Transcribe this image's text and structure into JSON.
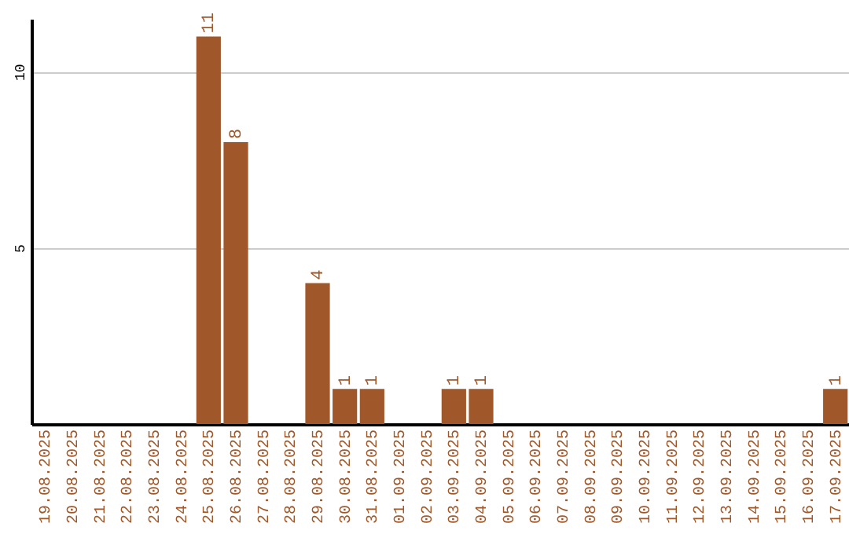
{
  "chart_data": {
    "type": "bar",
    "categories": [
      "19.08.2025",
      "20.08.2025",
      "21.08.2025",
      "22.08.2025",
      "23.08.2025",
      "24.08.2025",
      "25.08.2025",
      "26.08.2025",
      "27.08.2025",
      "28.08.2025",
      "29.08.2025",
      "30.08.2025",
      "31.08.2025",
      "01.09.2025",
      "02.09.2025",
      "03.09.2025",
      "04.09.2025",
      "05.09.2025",
      "06.09.2025",
      "07.09.2025",
      "08.09.2025",
      "09.09.2025",
      "10.09.2025",
      "11.09.2025",
      "12.09.2025",
      "13.09.2025",
      "14.09.2025",
      "15.09.2025",
      "16.09.2025",
      "17.09.2025"
    ],
    "values": [
      0,
      0,
      0,
      0,
      0,
      0,
      11,
      8,
      0,
      0,
      4,
      1,
      1,
      0,
      0,
      1,
      1,
      0,
      0,
      0,
      0,
      0,
      0,
      0,
      0,
      0,
      0,
      0,
      0,
      1
    ],
    "value_labels": [
      null,
      null,
      null,
      null,
      null,
      null,
      "11",
      "8",
      null,
      null,
      "4",
      "1",
      "1",
      null,
      null,
      "1",
      "1",
      null,
      null,
      null,
      null,
      null,
      null,
      null,
      null,
      null,
      null,
      null,
      null,
      "1"
    ],
    "color": "#a0582a",
    "ylim": [
      0,
      11.5
    ],
    "yticks": [
      5,
      10
    ],
    "grid": "y"
  }
}
